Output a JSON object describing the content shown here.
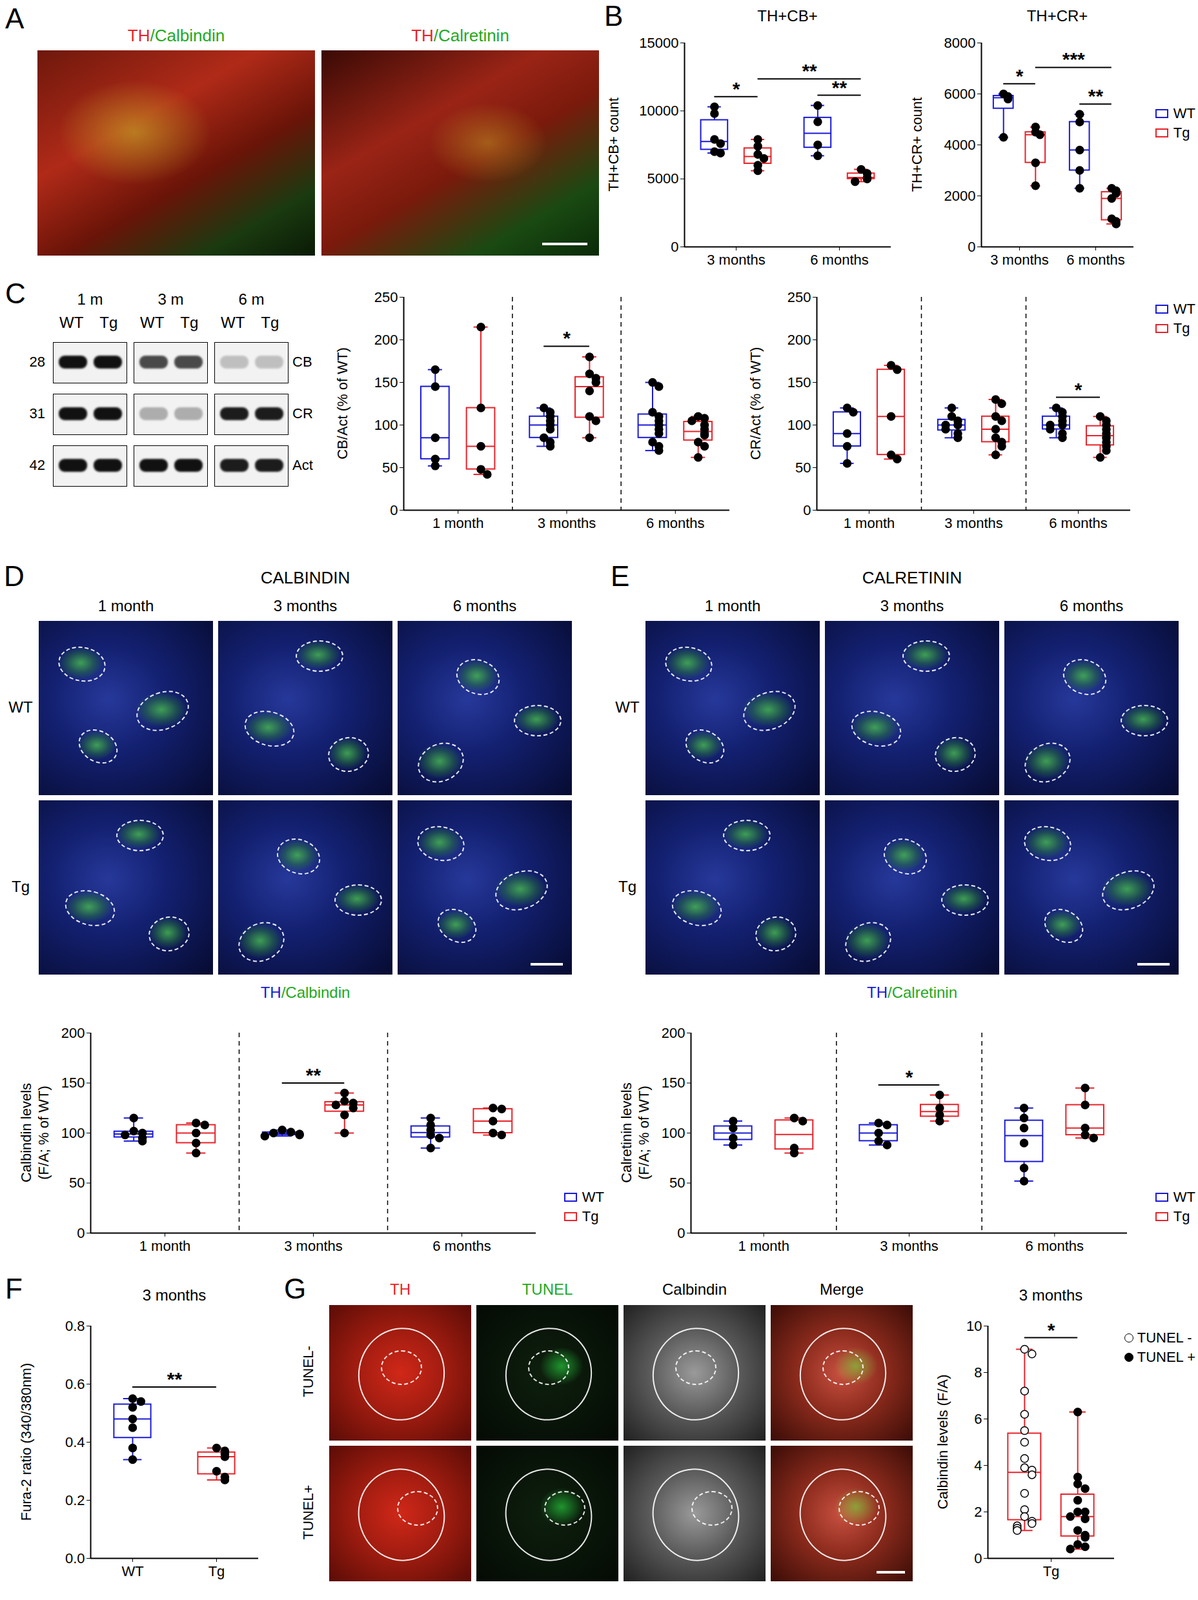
{
  "chart_data": [
    {
      "type": "box",
      "title": "TH+CB+",
      "y_label": "TH+CB+ count",
      "categories": [
        "3 months",
        "6 months"
      ],
      "ylim": [
        0,
        15000
      ],
      "yticks": [
        0,
        5000,
        10000,
        15000
      ],
      "series": [
        {
          "name": "WT",
          "color": "#1a1ad6",
          "values": [
            [
              10300,
              9800,
              7900,
              7600,
              7000,
              6900
            ],
            [
              10400,
              9200,
              7500,
              6700
            ]
          ]
        },
        {
          "name": "Tg",
          "color": "#e8232a",
          "values": [
            [
              7900,
              7400,
              6800,
              6500,
              6000,
              5600
            ],
            [
              5700,
              5400,
              5100,
              5000,
              4800
            ]
          ]
        }
      ],
      "annotations": [
        {
          "between": [
            [
              "3 months",
              "WT"
            ],
            [
              "3 months",
              "Tg"
            ]
          ],
          "text": "*"
        },
        {
          "between": [
            [
              "6 months",
              "WT"
            ],
            [
              "6 months",
              "Tg"
            ]
          ],
          "text": "**"
        },
        {
          "between": [
            [
              "3 months",
              "Tg"
            ],
            [
              "6 months",
              "Tg"
            ]
          ],
          "text": "**"
        }
      ]
    },
    {
      "type": "box",
      "title": "TH+CR+",
      "y_label": "TH+CR+ count",
      "categories": [
        "3 months",
        "6 months"
      ],
      "ylim": [
        0,
        8000
      ],
      "yticks": [
        0,
        2000,
        4000,
        6000,
        8000
      ],
      "legend": "right",
      "series": [
        {
          "name": "WT",
          "color": "#1a1ad6",
          "values": [
            [
              6000,
              5900,
              5800,
              4300
            ],
            [
              5200,
              4900,
              3800,
              3000,
              2300
            ]
          ]
        },
        {
          "name": "Tg",
          "color": "#e8232a",
          "values": [
            [
              4700,
              4500,
              4400,
              3300,
              2400
            ],
            [
              2300,
              2200,
              2100,
              1900,
              1100,
              1000,
              900
            ]
          ]
        }
      ],
      "annotations": [
        {
          "between": [
            [
              "3 months",
              "WT"
            ],
            [
              "3 months",
              "Tg"
            ]
          ],
          "text": "*"
        },
        {
          "between": [
            [
              "6 months",
              "WT"
            ],
            [
              "6 months",
              "Tg"
            ]
          ],
          "text": "**"
        },
        {
          "between": [
            [
              "3 months",
              "Tg"
            ],
            [
              "6 months",
              "Tg"
            ]
          ],
          "text": "***"
        }
      ]
    },
    {
      "type": "box",
      "y_label": "CB/Act (% of WT)",
      "categories": [
        "1 month",
        "3 months",
        "6 months"
      ],
      "ylim": [
        0,
        250
      ],
      "yticks": [
        0,
        50,
        100,
        150,
        200,
        250
      ],
      "series": [
        {
          "name": "WT",
          "color": "#1a1ad6",
          "values": [
            [
              165,
              145,
              85,
              60,
              52
            ],
            [
              120,
              115,
              110,
              105,
              100,
              95,
              85,
              80,
              75
            ],
            [
              150,
              145,
              115,
              110,
              105,
              100,
              95,
              90,
              80,
              75,
              70
            ]
          ]
        },
        {
          "name": "Tg",
          "color": "#e8232a",
          "values": [
            [
              215,
              120,
              75,
              48,
              42
            ],
            [
              180,
              160,
              155,
              150,
              140,
              110,
              105,
              85
            ],
            [
              110,
              108,
              105,
              100,
              95,
              90,
              88,
              80,
              75,
              62
            ]
          ]
        }
      ],
      "annotations": [
        {
          "between": [
            [
              "3 months",
              "WT"
            ],
            [
              "3 months",
              "Tg"
            ]
          ],
          "text": "*"
        }
      ]
    },
    {
      "type": "box",
      "y_label": "CR/Act (% of WT)",
      "categories": [
        "1 month",
        "3 months",
        "6 months"
      ],
      "ylim": [
        0,
        250
      ],
      "yticks": [
        0,
        50,
        100,
        150,
        200,
        250
      ],
      "legend": "top-right",
      "series": [
        {
          "name": "WT",
          "color": "#1a1ad6",
          "values": [
            [
              120,
              115,
              90,
              75,
              55
            ],
            [
              120,
              110,
              105,
              100,
              100,
              95,
              90,
              85
            ],
            [
              120,
              115,
              110,
              105,
              100,
              100,
              95,
              90,
              85
            ]
          ]
        },
        {
          "name": "Tg",
          "color": "#e8232a",
          "values": [
            [
              170,
              165,
              110,
              65,
              60
            ],
            [
              130,
              125,
              110,
              105,
              95,
              85,
              80,
              75,
              65
            ],
            [
              110,
              105,
              100,
              95,
              90,
              85,
              80,
              75,
              70,
              62
            ]
          ]
        }
      ],
      "annotations": [
        {
          "between": [
            [
              "6 months",
              "WT"
            ],
            [
              "6 months",
              "Tg"
            ]
          ],
          "text": "*"
        }
      ]
    },
    {
      "type": "box",
      "y_label": "Calbindin levels (F/A; % of WT)",
      "categories": [
        "1 month",
        "3 months",
        "6 months"
      ],
      "ylim": [
        0,
        200
      ],
      "yticks": [
        0,
        50,
        100,
        150,
        200
      ],
      "legend": "bottom-right",
      "series": [
        {
          "name": "WT",
          "color": "#1a1ad6",
          "values": [
            [
              115,
              102,
              100,
              98,
              95,
              92
            ],
            [
              103,
              101,
              100,
              99,
              98,
              97
            ],
            [
              115,
              108,
              103,
              98,
              95,
              85
            ]
          ]
        },
        {
          "name": "Tg",
          "color": "#e8232a",
          "values": [
            [
              110,
              108,
              100,
              90,
              80
            ],
            [
              140,
              132,
              130,
              128,
              125,
              118,
              100
            ],
            [
              125,
              124,
              112,
              100,
              98
            ]
          ]
        }
      ],
      "annotations": [
        {
          "between": [
            [
              "3 months",
              "WT"
            ],
            [
              "3 months",
              "Tg"
            ]
          ],
          "text": "**"
        }
      ]
    },
    {
      "type": "box",
      "y_label": "Calretinin levels (F/A; % of WT)",
      "categories": [
        "1 month",
        "3 months",
        "6 months"
      ],
      "ylim": [
        0,
        200
      ],
      "yticks": [
        0,
        50,
        100,
        150,
        200
      ],
      "legend": "bottom-right",
      "series": [
        {
          "name": "WT",
          "color": "#1a1ad6",
          "values": [
            [
              112,
              105,
              95,
              88
            ],
            [
              110,
              108,
              100,
              92,
              88
            ],
            [
              125,
              115,
              105,
              90,
              65,
              52
            ]
          ]
        },
        {
          "name": "Tg",
          "color": "#e8232a",
          "values": [
            [
              115,
              112,
              85,
              80
            ],
            [
              138,
              125,
              118,
              112
            ],
            [
              145,
              128,
              105,
              98,
              95
            ]
          ]
        }
      ],
      "annotations": [
        {
          "between": [
            [
              "3 months",
              "WT"
            ],
            [
              "3 months",
              "Tg"
            ]
          ],
          "text": "*"
        }
      ]
    },
    {
      "type": "box",
      "title": "3 months",
      "y_label": "Fura-2 ratio (340/380nm)",
      "categories": [
        "WT",
        "Tg"
      ],
      "ylim": [
        0,
        0.8
      ],
      "yticks": [
        {
          "value": 0,
          "label": "0.0"
        },
        0.2,
        0.4,
        0.6,
        0.8
      ],
      "series": [
        {
          "colors": [
            "#1a1ad6",
            "#e8232a"
          ],
          "values": [
            [
              0.55,
              0.54,
              0.52,
              0.48,
              0.45,
              0.38,
              0.34
            ],
            [
              0.38,
              0.37,
              0.36,
              0.35,
              0.3,
              0.28,
              0.27
            ]
          ]
        }
      ],
      "annotations": [
        {
          "between": [
            [
              "WT",
              null
            ],
            [
              "Tg",
              null
            ]
          ],
          "text": "**"
        }
      ]
    },
    {
      "type": "box",
      "title": "3 months",
      "y_label": "Calbindin levels (F/A)",
      "categories": [
        "Tg"
      ],
      "ylim": [
        0,
        10
      ],
      "yticks": [
        0,
        2,
        4,
        6,
        8,
        10
      ],
      "legend": "top-right",
      "series": [
        {
          "name": "TUNEL -",
          "color": "#e8232a",
          "marker": "open-circle",
          "values": [
            [
              9.0,
              8.8,
              7.2,
              6.2,
              5.5,
              5.0,
              4.3,
              3.9,
              3.8,
              3.6,
              2.8,
              2.1,
              1.8,
              1.6,
              1.5,
              1.4,
              1.3,
              1.2
            ]
          ]
        },
        {
          "name": "TUNEL +",
          "color": "#e8232a",
          "marker": "circle",
          "values": [
            [
              6.3,
              3.5,
              3.2,
              3.0,
              2.5,
              2.0,
              2.0,
              1.8,
              1.7,
              1.2,
              1.0,
              0.9,
              0.6,
              0.5,
              0.4
            ]
          ]
        }
      ],
      "annotations": [
        {
          "between": [
            [
              "Tg",
              "TUNEL -"
            ],
            [
              "Tg",
              "TUNEL +"
            ]
          ],
          "text": "*"
        }
      ]
    }
  ],
  "panels": {
    "A": {
      "letter": "A",
      "tiles": [
        [
          "TH",
          "/Calbindin"
        ],
        [
          "TH",
          "/Calretinin"
        ]
      ]
    },
    "B": {
      "letter": "B"
    },
    "C": {
      "letter": "C",
      "groups": [
        "1 m",
        "3 m",
        "6 m"
      ],
      "lanes": [
        "WT",
        "Tg"
      ],
      "rows": [
        {
          "mw": "28",
          "name": "CB"
        },
        {
          "mw": "31",
          "name": "CR"
        },
        {
          "mw": "42",
          "name": "Act"
        }
      ]
    },
    "D": {
      "letter": "D",
      "title": "CALBINDIN",
      "columns": [
        "1 month",
        "3 months",
        "6 months"
      ],
      "rows": [
        "WT",
        "Tg"
      ],
      "caption": [
        "TH",
        "/Calbindin"
      ]
    },
    "E": {
      "letter": "E",
      "title": "CALRETININ",
      "columns": [
        "1 month",
        "3 months",
        "6 months"
      ],
      "rows": [
        "WT",
        "Tg"
      ],
      "caption": [
        "TH",
        "/Calretinin"
      ]
    },
    "F": {
      "letter": "F"
    },
    "G": {
      "letter": "G",
      "columns": [
        "TH",
        "TUNEL",
        "Calbindin",
        "Merge"
      ],
      "rows": [
        "TUNEL-",
        "TUNEL+"
      ]
    }
  }
}
